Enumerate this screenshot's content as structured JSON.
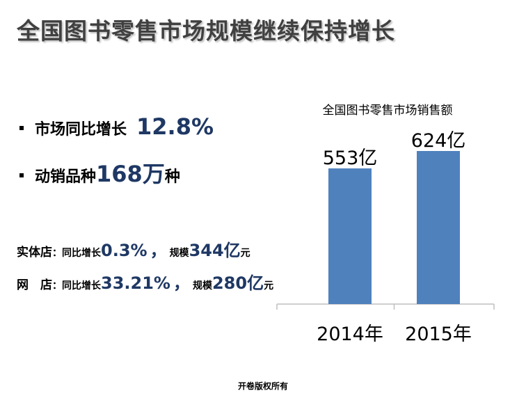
{
  "slide": {
    "title": "全国图书零售市场规模继续保持增长",
    "footer": "开卷版权所有"
  },
  "bullets": [
    {
      "label": "市场同比增长",
      "value": "12.8%",
      "unit": ""
    },
    {
      "label": "动销品种",
      "value": "168万",
      "unit": "种"
    }
  ],
  "details": [
    {
      "store": "实体店",
      "colon": "：",
      "growth_label": "同比增长",
      "growth": "0.3%",
      "comma": "，",
      "scale_label": "规模",
      "scale": "344亿",
      "scale_unit": "元"
    },
    {
      "store": "网　店",
      "colon": "：",
      "growth_label": "同比增长",
      "growth": "33.21%",
      "comma": "，",
      "scale_label": "规模",
      "scale": "280亿",
      "scale_unit": "元"
    }
  ],
  "colors": {
    "bar": "#4f81bd",
    "axis": "#bfbfbf",
    "title_text": "#404040",
    "highlight_text": "#1f3864"
  },
  "chart_data": {
    "type": "bar",
    "title": "全国图书零售市场销售额",
    "categories": [
      "2014年",
      "2015年"
    ],
    "values": [
      553,
      624
    ],
    "data_labels": [
      "553亿",
      "624亿"
    ],
    "xlabel": "",
    "ylabel": "",
    "ylim": [
      0,
      624
    ],
    "grid": false,
    "legend": "none"
  }
}
